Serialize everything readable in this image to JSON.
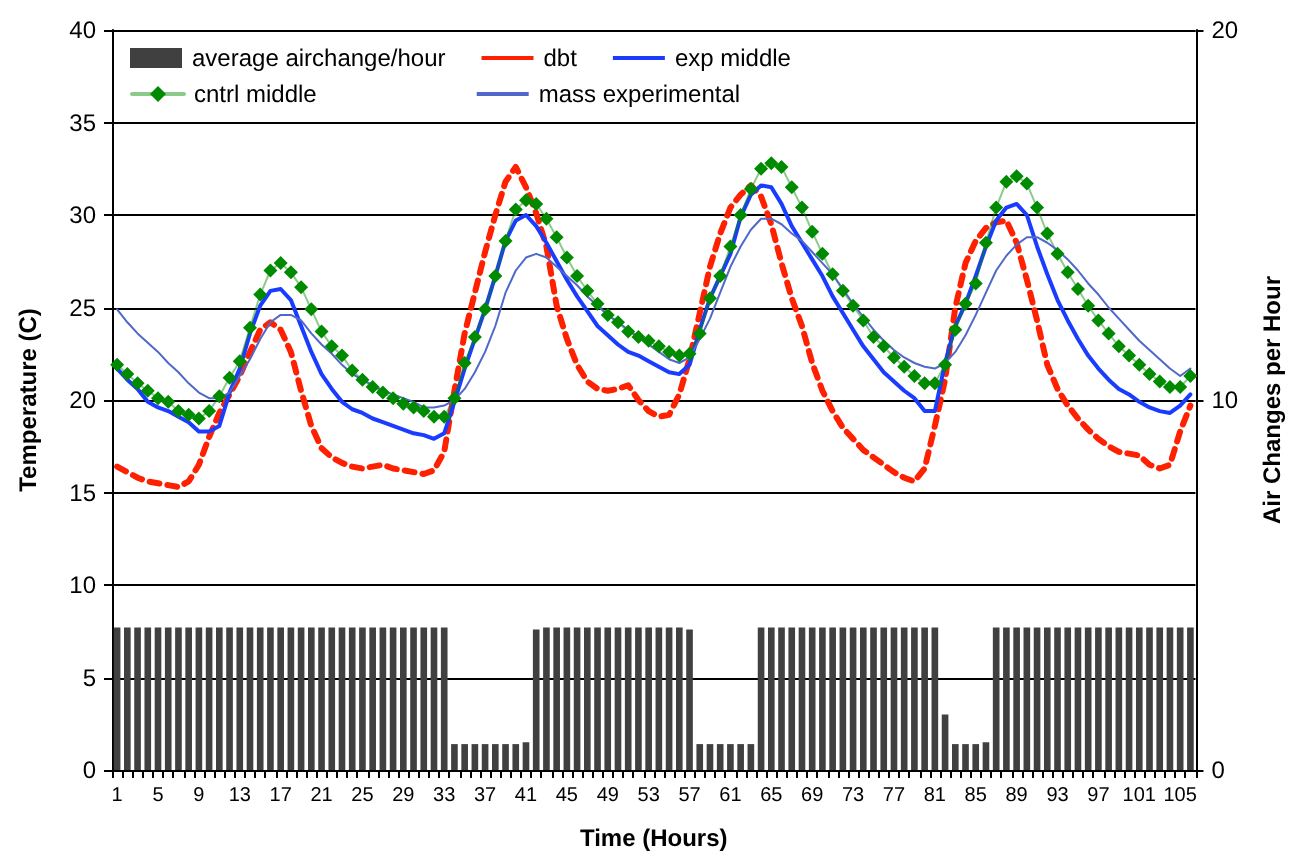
{
  "chart_data": {
    "type": "line",
    "xlabel": "Time (Hours)",
    "ylabel": "Temperature (C)",
    "y2label": "Air Changes per Hour",
    "categories": [
      "1",
      null,
      null,
      null,
      "5",
      null,
      null,
      null,
      "9",
      null,
      null,
      null,
      "13",
      null,
      null,
      null,
      "17",
      null,
      null,
      null,
      "21",
      null,
      null,
      null,
      "25",
      null,
      null,
      null,
      "29",
      null,
      null,
      null,
      "33",
      null,
      null,
      null,
      "37",
      null,
      null,
      null,
      "41",
      null,
      null,
      null,
      "45",
      null,
      null,
      null,
      "49",
      null,
      null,
      null,
      "53",
      null,
      null,
      null,
      "57",
      null,
      null,
      null,
      "61",
      null,
      null,
      null,
      "65",
      null,
      null,
      null,
      "69",
      null,
      null,
      null,
      "73",
      null,
      null,
      null,
      "77",
      null,
      null,
      null,
      "81",
      null,
      null,
      null,
      "85",
      null,
      null,
      null,
      "89",
      null,
      null,
      null,
      "93",
      null,
      null,
      null,
      "97",
      null,
      null,
      null,
      "101",
      null,
      null,
      null,
      "105",
      null
    ],
    "ylim": [
      0,
      40
    ],
    "yticks": [
      0,
      5,
      10,
      15,
      20,
      25,
      30,
      35,
      40
    ],
    "y2lim": [
      0,
      20
    ],
    "y2ticks": [
      0,
      10,
      20
    ],
    "grid": "y",
    "legend": "top left",
    "series": [
      {
        "name": "average airchange/hour",
        "type": "bar",
        "axis": "y2",
        "color": "#404040",
        "values": [
          3.85,
          3.85,
          3.85,
          3.85,
          3.85,
          3.85,
          3.85,
          3.85,
          3.85,
          3.85,
          3.85,
          3.85,
          3.85,
          3.85,
          3.85,
          3.85,
          3.85,
          3.85,
          3.85,
          3.85,
          3.85,
          3.85,
          3.85,
          3.85,
          3.85,
          3.85,
          3.85,
          3.85,
          3.85,
          3.85,
          3.85,
          3.85,
          3.85,
          0.7,
          0.7,
          0.7,
          0.7,
          0.7,
          0.7,
          0.7,
          0.75,
          3.8,
          3.85,
          3.85,
          3.85,
          3.85,
          3.85,
          3.85,
          3.85,
          3.85,
          3.85,
          3.85,
          3.85,
          3.85,
          3.85,
          3.85,
          3.8,
          0.7,
          0.7,
          0.7,
          0.7,
          0.7,
          0.7,
          3.85,
          3.85,
          3.85,
          3.85,
          3.85,
          3.85,
          3.85,
          3.85,
          3.85,
          3.85,
          3.85,
          3.85,
          3.85,
          3.85,
          3.85,
          3.85,
          3.85,
          3.85,
          1.5,
          0.7,
          0.7,
          0.7,
          0.75,
          3.85,
          3.85,
          3.85,
          3.85,
          3.85,
          3.85,
          3.85,
          3.85,
          3.85,
          3.85,
          3.85,
          3.85,
          3.85,
          3.85,
          3.85,
          3.85,
          3.85,
          3.85,
          3.85,
          3.85
        ]
      },
      {
        "name": "dbt",
        "color": "#ff2000",
        "line_style": "dashed",
        "marker": "none",
        "values": [
          16.4,
          16.1,
          15.8,
          15.6,
          15.5,
          15.4,
          15.3,
          15.6,
          16.5,
          18.0,
          19.3,
          20.3,
          21.3,
          22.6,
          23.8,
          24.2,
          23.8,
          22.6,
          20.5,
          18.6,
          17.4,
          16.9,
          16.6,
          16.4,
          16.3,
          16.4,
          16.5,
          16.3,
          16.2,
          16.1,
          16.0,
          16.2,
          17.2,
          20.5,
          23.6,
          25.8,
          28.0,
          30.0,
          31.8,
          32.6,
          31.5,
          30.1,
          28.3,
          25.1,
          23.3,
          21.9,
          21.0,
          20.6,
          20.5,
          20.6,
          20.8,
          20.0,
          19.4,
          19.1,
          19.2,
          20.3,
          22.2,
          24.7,
          27.2,
          29.0,
          30.4,
          31.1,
          31.6,
          31.0,
          29.5,
          27.4,
          25.5,
          24.0,
          22.0,
          20.5,
          19.4,
          18.5,
          17.9,
          17.3,
          16.9,
          16.5,
          16.1,
          15.8,
          15.6,
          16.3,
          18.6,
          21.1,
          25.0,
          27.4,
          28.6,
          29.3,
          29.6,
          29.7,
          28.5,
          26.5,
          24.3,
          21.9,
          20.6,
          19.7,
          19.0,
          18.4,
          17.9,
          17.5,
          17.2,
          17.1,
          17.0,
          16.5,
          16.3,
          16.5,
          18.3,
          19.7
        ]
      },
      {
        "name": "exp middle",
        "color": "#1a3cff",
        "line_style": "solid",
        "marker": "none",
        "values": [
          21.7,
          21.1,
          20.6,
          19.9,
          19.6,
          19.4,
          19.1,
          18.8,
          18.3,
          18.3,
          18.6,
          20.4,
          21.7,
          23.6,
          25.1,
          25.9,
          26.0,
          25.4,
          24.0,
          22.6,
          21.4,
          20.6,
          19.9,
          19.5,
          19.3,
          19.0,
          18.8,
          18.6,
          18.4,
          18.2,
          18.1,
          17.9,
          18.2,
          19.9,
          21.7,
          23.3,
          24.9,
          26.7,
          28.6,
          29.7,
          30.0,
          29.4,
          28.5,
          27.5,
          26.5,
          25.6,
          24.8,
          24.0,
          23.5,
          23.0,
          22.6,
          22.4,
          22.1,
          21.8,
          21.5,
          21.4,
          21.9,
          23.8,
          25.5,
          26.7,
          27.9,
          29.9,
          31.1,
          31.6,
          31.5,
          30.6,
          29.4,
          28.5,
          27.6,
          26.7,
          25.6,
          24.7,
          23.8,
          22.9,
          22.2,
          21.5,
          21.0,
          20.5,
          20.1,
          19.4,
          19.4,
          22.0,
          24.0,
          25.2,
          26.7,
          28.3,
          29.7,
          30.4,
          30.6,
          30.0,
          28.3,
          26.8,
          25.4,
          24.3,
          23.3,
          22.4,
          21.7,
          21.1,
          20.6,
          20.3,
          19.9,
          19.6,
          19.4,
          19.3,
          19.7,
          20.3
        ]
      },
      {
        "name": "cntrl middle",
        "color": "#008a00",
        "line_style": "solid",
        "marker": "diamond",
        "values": [
          21.9,
          21.4,
          20.9,
          20.5,
          20.1,
          19.9,
          19.4,
          19.2,
          19.0,
          19.4,
          20.2,
          21.2,
          22.1,
          23.9,
          25.7,
          27.0,
          27.4,
          26.9,
          26.1,
          24.9,
          23.7,
          22.9,
          22.4,
          21.6,
          21.1,
          20.7,
          20.4,
          20.1,
          19.8,
          19.6,
          19.4,
          19.1,
          19.1,
          20.1,
          22.0,
          23.4,
          24.9,
          26.7,
          28.6,
          30.3,
          30.8,
          30.6,
          29.8,
          28.8,
          27.7,
          26.7,
          25.9,
          25.2,
          24.6,
          24.2,
          23.7,
          23.4,
          23.2,
          22.9,
          22.6,
          22.4,
          22.5,
          23.6,
          25.5,
          26.7,
          28.3,
          30.0,
          31.4,
          32.5,
          32.8,
          32.6,
          31.5,
          30.4,
          29.1,
          27.9,
          26.8,
          25.9,
          25.1,
          24.3,
          23.4,
          22.9,
          22.3,
          21.8,
          21.3,
          20.9,
          20.9,
          21.9,
          23.8,
          25.2,
          26.3,
          28.5,
          30.4,
          31.8,
          32.1,
          31.7,
          30.4,
          29.0,
          27.9,
          26.9,
          26.0,
          25.1,
          24.3,
          23.6,
          22.9,
          22.4,
          21.9,
          21.4,
          21.0,
          20.7,
          20.7,
          21.3
        ]
      },
      {
        "name": "mass experimental",
        "color": "#5068c8",
        "line_style": "solid",
        "marker": "none",
        "values": [
          24.9,
          24.2,
          23.6,
          23.1,
          22.6,
          22.0,
          21.5,
          20.9,
          20.4,
          20.1,
          20.1,
          20.4,
          21.3,
          22.2,
          23.3,
          24.2,
          24.6,
          24.6,
          24.3,
          23.6,
          23.0,
          22.5,
          21.9,
          21.4,
          21.1,
          20.8,
          20.5,
          20.3,
          20.1,
          19.9,
          19.6,
          19.6,
          19.7,
          20.0,
          20.6,
          21.5,
          22.6,
          24.0,
          25.8,
          27.0,
          27.7,
          27.9,
          27.7,
          27.2,
          26.7,
          26.2,
          25.6,
          25.1,
          24.6,
          24.2,
          23.8,
          23.4,
          23.0,
          22.6,
          22.2,
          22.0,
          22.3,
          23.3,
          24.4,
          25.8,
          27.2,
          28.3,
          29.2,
          29.8,
          29.8,
          29.5,
          29.0,
          28.6,
          28.0,
          27.4,
          26.8,
          26.0,
          25.2,
          24.5,
          23.8,
          23.2,
          22.7,
          22.3,
          22.0,
          21.8,
          21.7,
          22.0,
          22.6,
          23.5,
          24.6,
          25.8,
          27.0,
          27.8,
          28.4,
          28.8,
          28.8,
          28.5,
          28.1,
          27.6,
          27.0,
          26.3,
          25.7,
          25.0,
          24.4,
          23.8,
          23.2,
          22.7,
          22.2,
          21.7,
          21.3,
          21.7
        ]
      }
    ]
  }
}
